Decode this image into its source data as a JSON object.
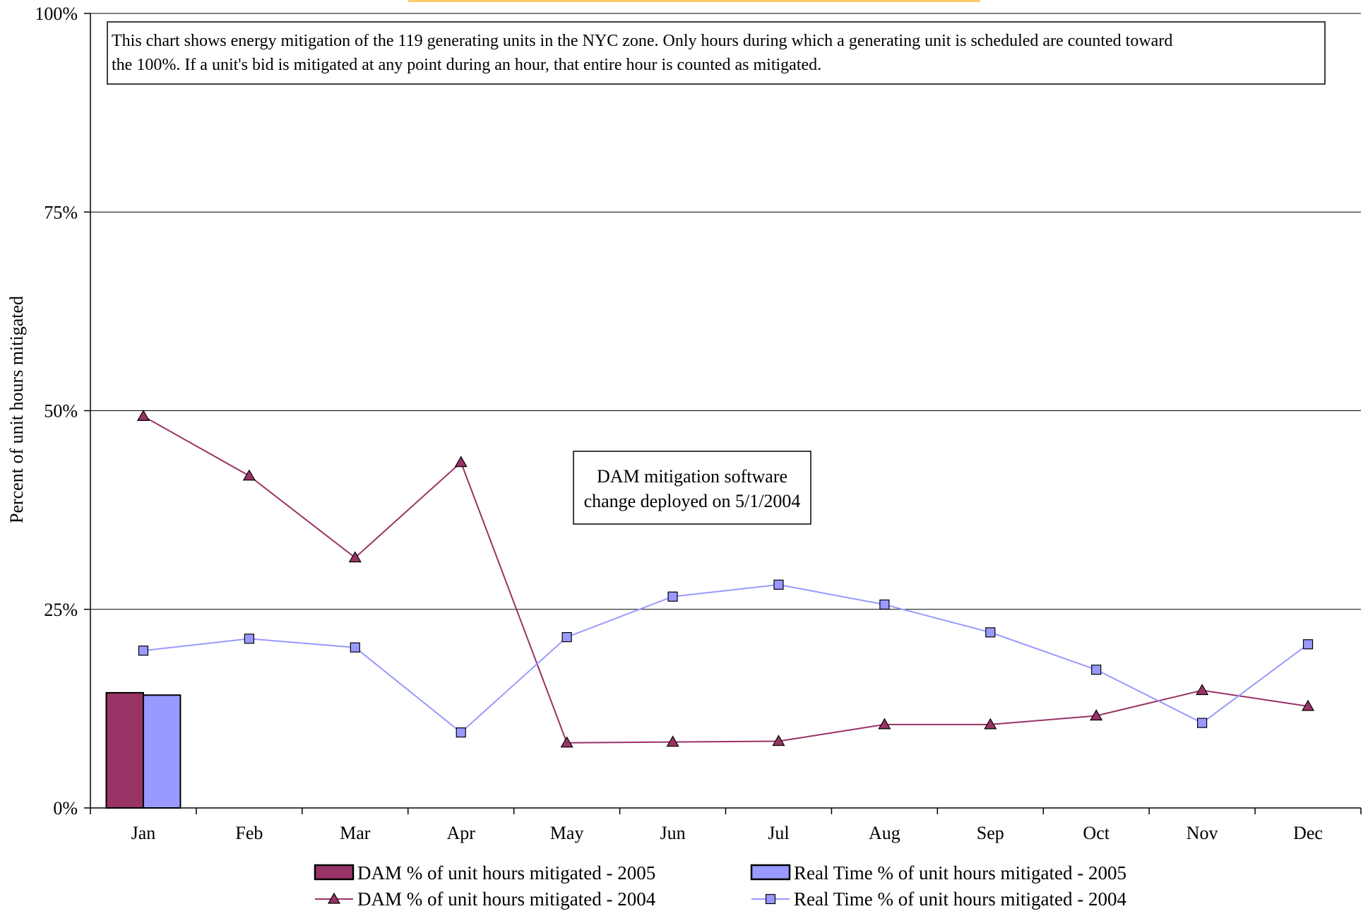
{
  "chart_data": {
    "type": "bar+line",
    "categories": [
      "Jan",
      "Feb",
      "Mar",
      "Apr",
      "May",
      "Jun",
      "Jul",
      "Aug",
      "Sep",
      "Oct",
      "Nov",
      "Dec"
    ],
    "ylabel": "Percent of unit hours mitigated",
    "ylim": [
      0,
      1
    ],
    "yticks": [
      {
        "value": 0,
        "label": "0%"
      },
      {
        "value": 0.25,
        "label": "25%"
      },
      {
        "value": 0.5,
        "label": "50%"
      },
      {
        "value": 0.75,
        "label": "75%"
      },
      {
        "value": 1,
        "label": "100%"
      }
    ],
    "grid": true,
    "legend_position": "bottom",
    "series": [
      {
        "name": "DAM % of unit hours mitigated - 2005",
        "kind": "bar",
        "color": "#993366",
        "values": [
          0.145,
          null,
          null,
          null,
          null,
          null,
          null,
          null,
          null,
          null,
          null,
          null
        ]
      },
      {
        "name": "Real Time % of unit hours mitigated - 2005",
        "kind": "bar",
        "color": "#9999ff",
        "values": [
          0.142,
          null,
          null,
          null,
          null,
          null,
          null,
          null,
          null,
          null,
          null,
          null
        ]
      },
      {
        "name": "DAM % of unit hours mitigated - 2004",
        "kind": "line",
        "marker": "triangle",
        "color": "#993366",
        "values": [
          0.493,
          0.418,
          0.315,
          0.435,
          0.082,
          0.083,
          0.084,
          0.105,
          0.105,
          0.116,
          0.148,
          0.128
        ]
      },
      {
        "name": "Real Time % of unit hours mitigated - 2004",
        "kind": "line",
        "marker": "square",
        "color": "#9999ff",
        "values": [
          0.198,
          0.213,
          0.202,
          0.095,
          0.215,
          0.266,
          0.281,
          0.256,
          0.221,
          0.174,
          0.107,
          0.206
        ]
      }
    ],
    "annotations": [
      {
        "id": "note",
        "text_lines": [
          "This chart shows energy mitigation of the 119 generating units in the NYC zone.  Only hours during which a generating unit is scheduled are counted toward",
          "the 100%. If a unit's bid is mitigated at any point during an hour, that entire hour is counted as mitigated."
        ]
      },
      {
        "id": "software",
        "text_lines": [
          "DAM mitigation software",
          "change deployed on 5/1/2004"
        ]
      }
    ],
    "top_bar_color": "#ffcc66"
  }
}
